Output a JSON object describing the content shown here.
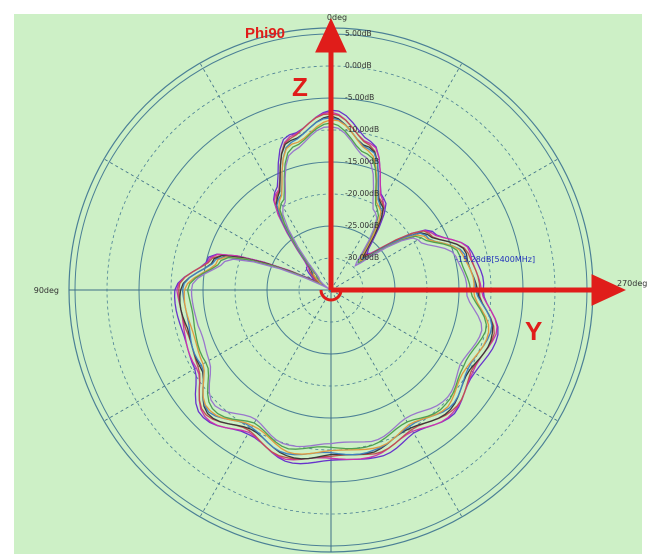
{
  "chart_data": {
    "type": "polar-line",
    "title": "Phi90",
    "angle_unit": "deg",
    "radial_unit": "dB",
    "angle_labels": [
      {
        "angle": 0,
        "text": "0deg"
      },
      {
        "angle": 90,
        "text": "90deg"
      },
      {
        "angle": 180,
        "text": "180deg"
      },
      {
        "angle": 270,
        "text": "270deg"
      }
    ],
    "radial_tick_labels": [
      "5.00dB",
      "0.00dB",
      "-5.00dB",
      "-10.00dB",
      "-15.00dB",
      "-20.00dB",
      "-25.00dB",
      "-30.00dB"
    ],
    "marker_label": "-15.28dB[5400MHz]",
    "axis_labels": {
      "vertical": "Z",
      "horizontal": "Y"
    },
    "colors": {
      "plot_background": "#cdf0c6",
      "grid_solid": "#4a7f95",
      "grid_dashed": "#4a7f95",
      "axis_lines": "#3d6e87",
      "overlay": "#e01d1a",
      "marker_text": "#2233bb",
      "series": [
        "#6633cc",
        "#cc33aa",
        "#c05050",
        "#3a3a3a",
        "#4080c0",
        "#e09a40",
        "#50a050",
        "#9977cc"
      ]
    },
    "series_count": 8,
    "series_shape": {
      "angles_deg": [
        0,
        15,
        30,
        45,
        60,
        75,
        90,
        105,
        120,
        135,
        150,
        165,
        180,
        195,
        210,
        225,
        240,
        255,
        270,
        285,
        300,
        315,
        330,
        345
      ],
      "values_db": [
        -1.9,
        -4.9,
        -12.4,
        -24.8,
        -27,
        -10.2,
        -5.6,
        -5.9,
        -5.4,
        -1.8,
        -4.0,
        -2.3,
        -3.4,
        -2.9,
        -4.2,
        -2.7,
        -4.1,
        -3.0,
        -6.2,
        -7.2,
        -11.7,
        -22,
        -13.5,
        -6.0
      ]
    },
    "series_offsets_db": [
      0.0,
      -0.3,
      -0.6,
      -0.9,
      -1.2,
      -1.5,
      -2.0,
      -2.6
    ]
  }
}
